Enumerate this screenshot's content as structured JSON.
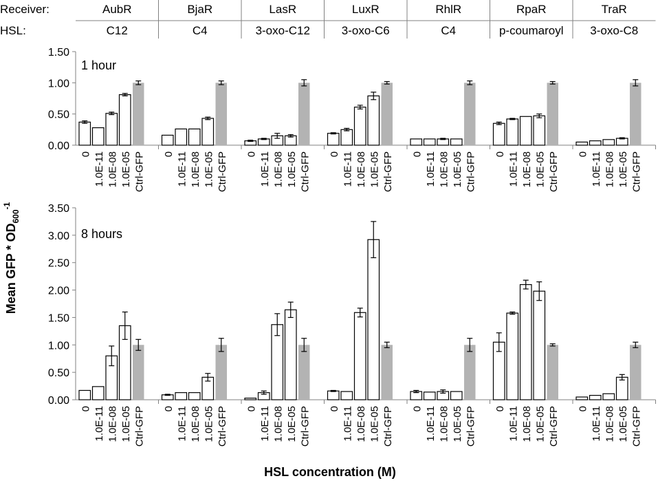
{
  "header": {
    "receiver_label": "Receiver:",
    "hsl_label": "HSL:",
    "receivers": [
      "AubR",
      "BjaR",
      "LasR",
      "LuxR",
      "RhlR",
      "RpaR",
      "TraR"
    ],
    "hsls": [
      "C12",
      "C4",
      "3-oxo-C12",
      "3-oxo-C6",
      "C4",
      "p-coumaroyl",
      "3-oxo-C8"
    ]
  },
  "axes": {
    "ylabel_main": "Mean GFP * OD",
    "ylabel_sub": "600",
    "ylabel_sup": "-1",
    "xlabel": "HSL concentration (M)"
  },
  "colors": {
    "sample_fill": "#ffffff",
    "control_fill": "#b3b3b3",
    "axis": "#808080",
    "bar_edge": "#000000",
    "header_line": "#808080"
  },
  "chart_data": [
    {
      "type": "bar",
      "title": "1 hour",
      "xlabel": "HSL concentration (M)",
      "ylabel": "Mean GFP * OD600^-1",
      "ylim": [
        0,
        1.5
      ],
      "yticks": [
        "0.00",
        "0.50",
        "1.00",
        "1.50"
      ],
      "ytick_values": [
        0,
        0.5,
        1.0,
        1.5
      ],
      "categories": [
        "0",
        "1.0E-11",
        "1.0E-08",
        "1.0E-05",
        "Ctrl-GFP"
      ],
      "series": [
        {
          "name": "AubR",
          "values": [
            0.37,
            0.28,
            0.51,
            0.81,
            1.0
          ],
          "errors": [
            0.02,
            0.0,
            0.02,
            0.02,
            0.03
          ]
        },
        {
          "name": "BjaR",
          "values": [
            0.16,
            0.26,
            0.26,
            0.43,
            1.0
          ],
          "errors": [
            0.0,
            0.0,
            0.0,
            0.02,
            0.03
          ]
        },
        {
          "name": "LasR",
          "values": [
            0.07,
            0.1,
            0.15,
            0.15,
            1.0
          ],
          "errors": [
            0.01,
            0.01,
            0.04,
            0.02,
            0.05
          ]
        },
        {
          "name": "LuxR",
          "values": [
            0.19,
            0.25,
            0.61,
            0.79,
            1.0
          ],
          "errors": [
            0.01,
            0.02,
            0.03,
            0.06,
            0.02
          ]
        },
        {
          "name": "RhlR",
          "values": [
            0.1,
            0.1,
            0.1,
            0.1,
            1.0
          ],
          "errors": [
            0.0,
            0.0,
            0.01,
            0.0,
            0.03
          ]
        },
        {
          "name": "RpaR",
          "values": [
            0.35,
            0.42,
            0.46,
            0.47,
            1.0
          ],
          "errors": [
            0.02,
            0.01,
            0.0,
            0.03,
            0.02
          ]
        },
        {
          "name": "TraR",
          "values": [
            0.05,
            0.07,
            0.09,
            0.11,
            1.0
          ],
          "errors": [
            0.0,
            0.0,
            0.0,
            0.01,
            0.05
          ]
        }
      ]
    },
    {
      "type": "bar",
      "title": "8 hours",
      "xlabel": "HSL concentration (M)",
      "ylabel": "Mean GFP * OD600^-1",
      "ylim": [
        0,
        3.5
      ],
      "yticks": [
        "0.00",
        "0.50",
        "1.00",
        "1.50",
        "2.00",
        "2.50",
        "3.00",
        "3.50"
      ],
      "ytick_values": [
        0,
        0.5,
        1.0,
        1.5,
        2.0,
        2.5,
        3.0,
        3.5
      ],
      "categories": [
        "0",
        "1.0E-11",
        "1.0E-08",
        "1.0E-05",
        "Ctrl-GFP"
      ],
      "series": [
        {
          "name": "AubR",
          "values": [
            0.17,
            0.24,
            0.8,
            1.35,
            1.0
          ],
          "errors": [
            0.0,
            0.0,
            0.18,
            0.25,
            0.1
          ]
        },
        {
          "name": "BjaR",
          "values": [
            0.09,
            0.13,
            0.13,
            0.41,
            1.0
          ],
          "errors": [
            0.01,
            0.0,
            0.0,
            0.07,
            0.12
          ]
        },
        {
          "name": "LasR",
          "values": [
            0.03,
            0.13,
            1.37,
            1.64,
            1.0
          ],
          "errors": [
            0.0,
            0.03,
            0.2,
            0.14,
            0.12
          ]
        },
        {
          "name": "LuxR",
          "values": [
            0.16,
            0.15,
            1.59,
            2.92,
            1.0
          ],
          "errors": [
            0.01,
            0.0,
            0.08,
            0.33,
            0.05
          ]
        },
        {
          "name": "RhlR",
          "values": [
            0.15,
            0.14,
            0.15,
            0.15,
            1.0
          ],
          "errors": [
            0.02,
            0.0,
            0.03,
            0.0,
            0.12
          ]
        },
        {
          "name": "RpaR",
          "values": [
            1.05,
            1.58,
            2.1,
            1.98,
            1.0
          ],
          "errors": [
            0.17,
            0.02,
            0.08,
            0.17,
            0.02
          ]
        },
        {
          "name": "TraR",
          "values": [
            0.05,
            0.08,
            0.11,
            0.41,
            1.0
          ],
          "errors": [
            0.0,
            0.0,
            0.0,
            0.05,
            0.05
          ]
        }
      ]
    }
  ]
}
